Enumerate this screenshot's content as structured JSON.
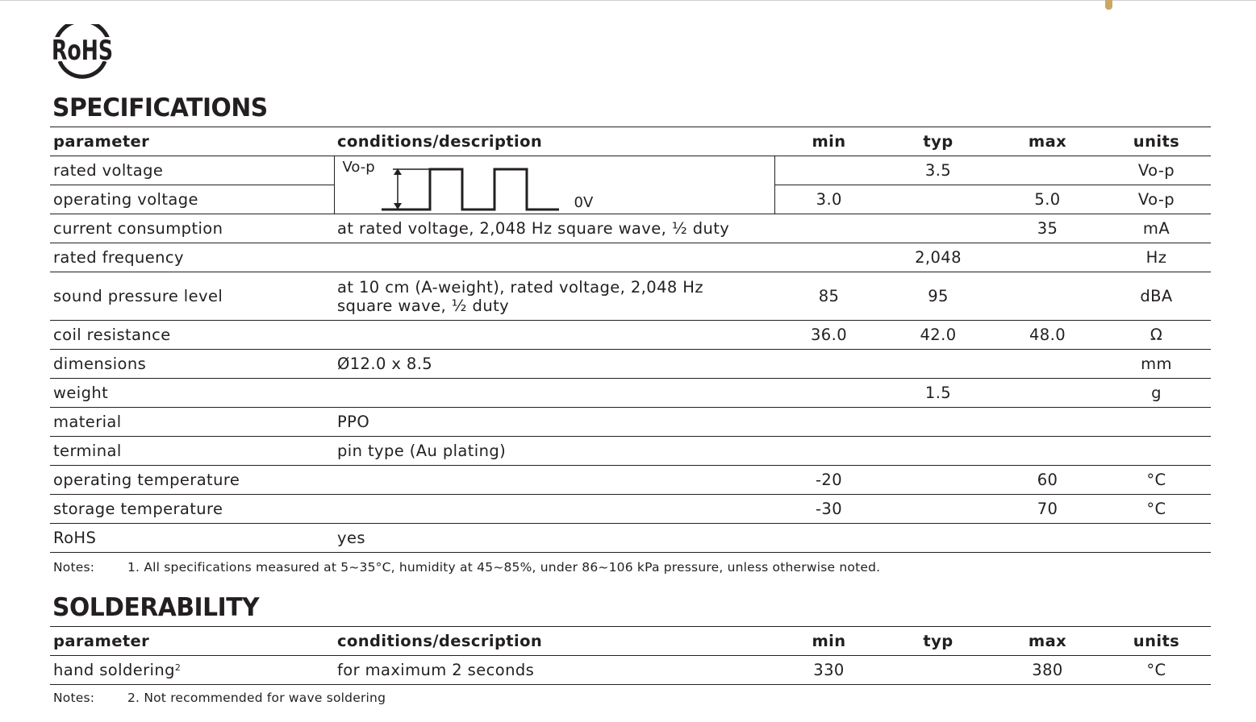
{
  "logo": {
    "text": "RoHS"
  },
  "specifications": {
    "title": "SPECIFICATIONS",
    "headers": [
      "parameter",
      "conditions/description",
      "min",
      "typ",
      "max",
      "units"
    ],
    "waveform": {
      "vop_label": "Vo-p",
      "zero_label": "0V"
    },
    "rows": [
      {
        "parameter": "rated voltage",
        "conditions": "",
        "min": "",
        "typ": "3.5",
        "max": "",
        "units": "Vo-p"
      },
      {
        "parameter": "operating voltage",
        "conditions": "",
        "min": "3.0",
        "typ": "",
        "max": "5.0",
        "units": "Vo-p"
      },
      {
        "parameter": "current consumption",
        "conditions": "at rated voltage, 2,048 Hz square wave, ½ duty",
        "min": "",
        "typ": "",
        "max": "35",
        "units": "mA"
      },
      {
        "parameter": "rated frequency",
        "conditions": "",
        "min": "",
        "typ": "2,048",
        "max": "",
        "units": "Hz"
      },
      {
        "parameter": "sound pressure level",
        "conditions_line1": "at 10 cm (A-weight), rated voltage, 2,048 Hz",
        "conditions_line2": "square wave, ½ duty",
        "min": "85",
        "typ": "95",
        "max": "",
        "units": "dBA"
      },
      {
        "parameter": "coil resistance",
        "conditions": "",
        "min": "36.0",
        "typ": "42.0",
        "max": "48.0",
        "units": "Ω"
      },
      {
        "parameter": "dimensions",
        "conditions": "Ø12.0 x 8.5",
        "min": "",
        "typ": "",
        "max": "",
        "units": "mm"
      },
      {
        "parameter": "weight",
        "conditions": "",
        "min": "",
        "typ": "1.5",
        "max": "",
        "units": "g"
      },
      {
        "parameter": "material",
        "conditions": "PPO",
        "min": "",
        "typ": "",
        "max": "",
        "units": ""
      },
      {
        "parameter": "terminal",
        "conditions": "pin type (Au plating)",
        "min": "",
        "typ": "",
        "max": "",
        "units": ""
      },
      {
        "parameter": "operating temperature",
        "conditions": "",
        "min": "-20",
        "typ": "",
        "max": "60",
        "units": "°C"
      },
      {
        "parameter": "storage temperature",
        "conditions": "",
        "min": "-30",
        "typ": "",
        "max": "70",
        "units": "°C"
      },
      {
        "parameter": "RoHS",
        "conditions": "yes",
        "min": "",
        "typ": "",
        "max": "",
        "units": ""
      }
    ],
    "notes": {
      "label": "Notes:",
      "items": [
        "1. All specifications measured at 5~35°C, humidity at 45~85%, under 86~106 kPa pressure, unless otherwise noted."
      ]
    }
  },
  "solderability": {
    "title": "SOLDERABILITY",
    "headers": [
      "parameter",
      "conditions/description",
      "min",
      "typ",
      "max",
      "units"
    ],
    "rows": [
      {
        "parameter": "hand soldering",
        "footnote": "2",
        "conditions": "for maximum 2 seconds",
        "min": "330",
        "typ": "",
        "max": "380",
        "units": "°C"
      }
    ],
    "notes": {
      "label": "Notes:",
      "items": [
        "2. Not recommended for wave soldering"
      ]
    }
  }
}
